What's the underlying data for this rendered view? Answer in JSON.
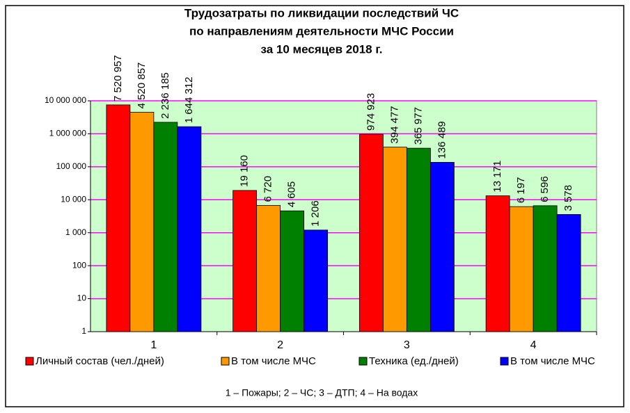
{
  "chart_data": {
    "type": "bar",
    "title": [
      "Трудозатраты по ликвидации последствий ЧС",
      "по направлениям деятельности МЧС России",
      "за 10 месяцев 2018 г."
    ],
    "categories": [
      "1",
      "2",
      "3",
      "4"
    ],
    "series": [
      {
        "name": "Личный состав (чел./дней)",
        "color": "#ff0000",
        "values": [
          7520957,
          19160,
          974923,
          13171
        ],
        "value_labels": [
          "7 520 957",
          "19 160",
          "974 923",
          "13 171"
        ]
      },
      {
        "name": "В том числе МЧС",
        "color": "#ff9900",
        "values": [
          4520857,
          6720,
          394477,
          6197
        ],
        "value_labels": [
          "4 520 857",
          "6 720",
          "394 477",
          "6 197"
        ]
      },
      {
        "name": "Техника (ед./дней)",
        "color": "#008000",
        "values": [
          2236185,
          4605,
          365977,
          6596
        ],
        "value_labels": [
          "2 236 185",
          "4 605",
          "365 977",
          "6 596"
        ]
      },
      {
        "name": "В том числе МЧС",
        "color": "#0000ff",
        "values": [
          1644312,
          1206,
          136489,
          3578
        ],
        "value_labels": [
          "1 644 312",
          "1 206",
          "136 489",
          "3 578"
        ]
      }
    ],
    "ylim": [
      1,
      10000000
    ],
    "yticks": [
      1,
      10,
      100,
      {
        "value": 1000,
        "label": "1 000"
      },
      {
        "value": 10000,
        "label": "10 000"
      },
      {
        "value": 100000,
        "label": "100 000"
      },
      {
        "value": 1000000,
        "label": "1 000 000"
      },
      {
        "value": 10000000,
        "label": "10 000 000"
      }
    ],
    "log_scale": true,
    "grid": true,
    "grid_color": "#ff00ff",
    "plot_background": "#ccffcc",
    "legend": "bottom",
    "footnote": "1 – Пожары; 2 – ЧС; 3 – ДТП; 4 – На водах"
  }
}
